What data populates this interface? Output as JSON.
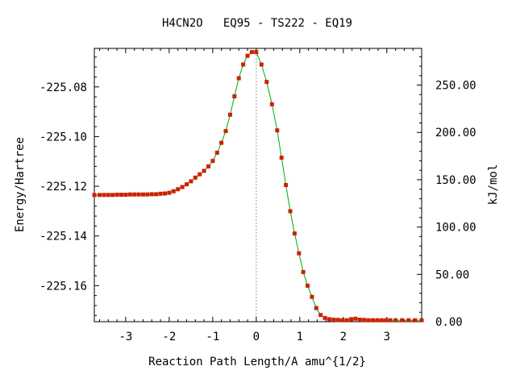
{
  "chart_data": {
    "type": "line",
    "title": "H4CN2O   EQ95 - TS222 - EQ19",
    "xlabel": "Reaction Path Length/A amu^{1/2}",
    "ylabel": "Energy/Hartree",
    "y2label": "kJ/mol",
    "xlim": [
      -3.72,
      3.8
    ],
    "ylim": [
      -225.1745,
      -225.0645
    ],
    "y2lim": [
      0.0,
      288.8
    ],
    "x_ticks": [
      -3,
      -2,
      -1,
      0,
      1,
      2,
      3
    ],
    "x_tick_labels": [
      "-3",
      "-2",
      "-1",
      "0",
      "1",
      "2",
      "3"
    ],
    "y_ticks": [
      -225.08,
      -225.1,
      -225.12,
      -225.14,
      -225.16
    ],
    "y_tick_labels": [
      "-225.08",
      "-225.10",
      "-225.12",
      "-225.14",
      "-225.16"
    ],
    "y2_ticks": [
      0,
      50,
      100,
      150,
      200,
      250
    ],
    "y2_tick_labels": [
      "0.00",
      "50.00",
      "100.00",
      "150.00",
      "200.00",
      "250.00"
    ],
    "ts_marker_x": 0.0,
    "line_color": "#00aa00",
    "marker_color": "#cc2200",
    "ts_line_color": "#999999",
    "series": [
      {
        "x": [
          -3.72,
          -3.6,
          -3.5,
          -3.4,
          -3.3,
          -3.2,
          -3.1,
          -3.0,
          -2.9,
          -2.8,
          -2.7,
          -2.6,
          -2.5,
          -2.4,
          -2.3,
          -2.2,
          -2.1,
          -2.0,
          -1.9,
          -1.8,
          -1.7,
          -1.6,
          -1.5,
          -1.4,
          -1.3,
          -1.2,
          -1.1,
          -1.0,
          -0.9,
          -0.8,
          -0.7,
          -0.6,
          -0.5,
          -0.4,
          -0.3,
          -0.2,
          -0.1,
          0.0,
          0.12,
          0.24,
          0.36,
          0.48,
          0.58,
          0.68,
          0.78,
          0.88,
          0.98,
          1.08,
          1.18,
          1.28,
          1.38,
          1.48,
          1.58,
          1.68,
          1.78,
          1.88,
          1.98,
          2.08,
          2.18,
          2.28,
          2.38,
          2.48,
          2.58,
          2.68,
          2.78,
          2.88,
          2.98,
          3.08,
          3.2,
          3.35,
          3.5,
          3.65,
          3.8
        ],
        "y": [
          -225.1235,
          -225.1235,
          -225.1235,
          -225.1235,
          -225.1235,
          -225.1234,
          -225.1234,
          -225.1234,
          -225.1233,
          -225.1233,
          -225.1233,
          -225.1233,
          -225.1233,
          -225.1232,
          -225.1232,
          -225.123,
          -225.1229,
          -225.1226,
          -225.122,
          -225.1212,
          -225.1203,
          -225.1192,
          -225.118,
          -225.1165,
          -225.1152,
          -225.1138,
          -225.112,
          -225.1098,
          -225.1065,
          -225.1025,
          -225.0978,
          -225.0912,
          -225.0838,
          -225.0765,
          -225.071,
          -225.0675,
          -225.066,
          -225.066,
          -225.071,
          -225.078,
          -225.087,
          -225.0975,
          -225.1085,
          -225.1195,
          -225.13,
          -225.139,
          -225.147,
          -225.1545,
          -225.16,
          -225.1645,
          -225.169,
          -225.1718,
          -225.173,
          -225.1735,
          -225.1737,
          -225.1738,
          -225.1739,
          -225.1739,
          -225.1735,
          -225.1733,
          -225.1737,
          -225.1738,
          -225.1739,
          -225.1739,
          -225.1739,
          -225.1739,
          -225.1739,
          -225.1739,
          -225.1739,
          -225.1739,
          -225.1739,
          -225.1739,
          -225.1739
        ]
      }
    ]
  }
}
